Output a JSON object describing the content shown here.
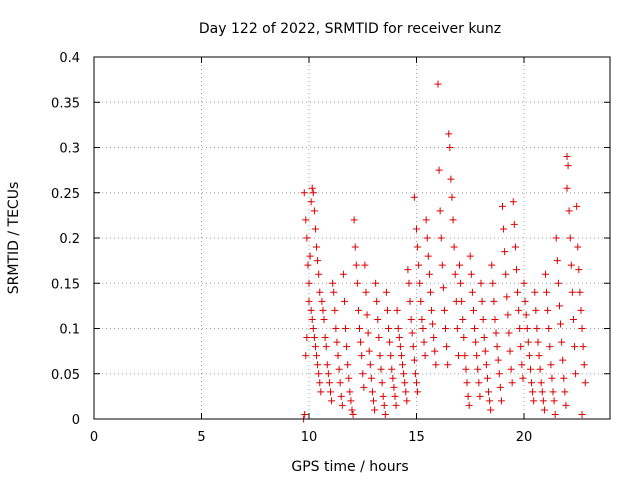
{
  "chart_data": {
    "type": "scatter",
    "title": "Day 122 of 2022, SRMTID for receiver kunz",
    "xlabel": "GPS time / hours",
    "ylabel": "SRMTID / TECUs",
    "xlim": [
      0,
      24
    ],
    "ylim": [
      0,
      0.4
    ],
    "xticks": [
      0,
      5,
      10,
      15,
      20
    ],
    "xtick_labels": [
      "0",
      "5",
      "10",
      "15",
      "20"
    ],
    "yticks": [
      0,
      0.05,
      0.1,
      0.15,
      0.2,
      0.25,
      0.3,
      0.35,
      0.4
    ],
    "ytick_labels": [
      "0",
      "0.05",
      "0.1",
      "0.15",
      "0.2",
      "0.25",
      "0.3",
      "0.35",
      "0.4"
    ],
    "grid": true,
    "marker": "+",
    "color": "#dd0000",
    "series": [
      {
        "name": "SRMTID",
        "points": [
          [
            9.75,
            0.0
          ],
          [
            9.8,
            0.005
          ],
          [
            9.78,
            0.25
          ],
          [
            9.85,
            0.22
          ],
          [
            9.9,
            0.2
          ],
          [
            9.95,
            0.17
          ],
          [
            10.0,
            0.15
          ],
          [
            10.0,
            0.13
          ],
          [
            9.9,
            0.09
          ],
          [
            9.85,
            0.07
          ],
          [
            10.05,
            0.18
          ],
          [
            10.1,
            0.24
          ],
          [
            10.15,
            0.255
          ],
          [
            10.2,
            0.25
          ],
          [
            10.25,
            0.23
          ],
          [
            10.3,
            0.21
          ],
          [
            10.35,
            0.19
          ],
          [
            10.4,
            0.175
          ],
          [
            10.45,
            0.16
          ],
          [
            10.5,
            0.14
          ],
          [
            10.1,
            0.12
          ],
          [
            10.15,
            0.11
          ],
          [
            10.2,
            0.1
          ],
          [
            10.25,
            0.09
          ],
          [
            10.3,
            0.08
          ],
          [
            10.35,
            0.07
          ],
          [
            10.4,
            0.06
          ],
          [
            10.45,
            0.05
          ],
          [
            10.5,
            0.04
          ],
          [
            10.55,
            0.03
          ],
          [
            10.6,
            0.13
          ],
          [
            10.65,
            0.12
          ],
          [
            10.7,
            0.11
          ],
          [
            10.75,
            0.09
          ],
          [
            10.8,
            0.08
          ],
          [
            10.85,
            0.06
          ],
          [
            10.9,
            0.05
          ],
          [
            10.95,
            0.04
          ],
          [
            11.0,
            0.03
          ],
          [
            11.05,
            0.02
          ],
          [
            11.1,
            0.15
          ],
          [
            11.15,
            0.14
          ],
          [
            11.2,
            0.12
          ],
          [
            11.25,
            0.1
          ],
          [
            11.3,
            0.085
          ],
          [
            11.35,
            0.07
          ],
          [
            11.4,
            0.055
          ],
          [
            11.45,
            0.04
          ],
          [
            11.5,
            0.025
          ],
          [
            11.55,
            0.015
          ],
          [
            11.6,
            0.16
          ],
          [
            11.65,
            0.13
          ],
          [
            11.7,
            0.1
          ],
          [
            11.75,
            0.08
          ],
          [
            11.8,
            0.06
          ],
          [
            11.85,
            0.045
          ],
          [
            11.9,
            0.03
          ],
          [
            11.95,
            0.02
          ],
          [
            12.0,
            0.01
          ],
          [
            12.05,
            0.005
          ],
          [
            12.1,
            0.22
          ],
          [
            12.15,
            0.19
          ],
          [
            12.2,
            0.17
          ],
          [
            12.25,
            0.15
          ],
          [
            12.3,
            0.12
          ],
          [
            12.35,
            0.1
          ],
          [
            12.4,
            0.085
          ],
          [
            12.45,
            0.07
          ],
          [
            12.5,
            0.05
          ],
          [
            12.55,
            0.035
          ],
          [
            12.6,
            0.17
          ],
          [
            12.65,
            0.14
          ],
          [
            12.7,
            0.115
          ],
          [
            12.75,
            0.095
          ],
          [
            12.8,
            0.075
          ],
          [
            12.85,
            0.06
          ],
          [
            12.9,
            0.045
          ],
          [
            12.95,
            0.03
          ],
          [
            13.0,
            0.02
          ],
          [
            13.05,
            0.01
          ],
          [
            13.1,
            0.15
          ],
          [
            13.15,
            0.13
          ],
          [
            13.2,
            0.11
          ],
          [
            13.25,
            0.09
          ],
          [
            13.3,
            0.07
          ],
          [
            13.35,
            0.055
          ],
          [
            13.4,
            0.04
          ],
          [
            13.45,
            0.025
          ],
          [
            13.5,
            0.015
          ],
          [
            13.55,
            0.005
          ],
          [
            13.6,
            0.14
          ],
          [
            13.65,
            0.12
          ],
          [
            13.7,
            0.1
          ],
          [
            13.75,
            0.085
          ],
          [
            13.8,
            0.07
          ],
          [
            13.85,
            0.055
          ],
          [
            13.9,
            0.045
          ],
          [
            13.95,
            0.035
          ],
          [
            14.0,
            0.025
          ],
          [
            14.05,
            0.015
          ],
          [
            14.1,
            0.12
          ],
          [
            14.15,
            0.1
          ],
          [
            14.2,
            0.09
          ],
          [
            14.25,
            0.08
          ],
          [
            14.3,
            0.07
          ],
          [
            14.35,
            0.06
          ],
          [
            14.4,
            0.05
          ],
          [
            14.45,
            0.04
          ],
          [
            14.5,
            0.03
          ],
          [
            14.55,
            0.02
          ],
          [
            14.6,
            0.165
          ],
          [
            14.65,
            0.15
          ],
          [
            14.7,
            0.13
          ],
          [
            14.75,
            0.11
          ],
          [
            14.8,
            0.095
          ],
          [
            14.85,
            0.08
          ],
          [
            14.9,
            0.065
          ],
          [
            14.95,
            0.05
          ],
          [
            15.0,
            0.04
          ],
          [
            15.05,
            0.03
          ],
          [
            14.9,
            0.245
          ],
          [
            15.0,
            0.21
          ],
          [
            15.05,
            0.19
          ],
          [
            15.1,
            0.17
          ],
          [
            15.15,
            0.15
          ],
          [
            15.2,
            0.13
          ],
          [
            15.25,
            0.11
          ],
          [
            15.3,
            0.1
          ],
          [
            15.35,
            0.085
          ],
          [
            15.4,
            0.07
          ],
          [
            15.45,
            0.22
          ],
          [
            15.5,
            0.2
          ],
          [
            15.55,
            0.18
          ],
          [
            15.6,
            0.16
          ],
          [
            15.65,
            0.14
          ],
          [
            15.7,
            0.12
          ],
          [
            15.75,
            0.105
          ],
          [
            15.8,
            0.09
          ],
          [
            15.85,
            0.075
          ],
          [
            15.9,
            0.06
          ],
          [
            16.0,
            0.37
          ],
          [
            16.05,
            0.275
          ],
          [
            16.1,
            0.23
          ],
          [
            16.15,
            0.2
          ],
          [
            16.2,
            0.17
          ],
          [
            16.25,
            0.145
          ],
          [
            16.3,
            0.12
          ],
          [
            16.35,
            0.1
          ],
          [
            16.4,
            0.08
          ],
          [
            16.45,
            0.06
          ],
          [
            16.5,
            0.315
          ],
          [
            16.55,
            0.3
          ],
          [
            16.6,
            0.265
          ],
          [
            16.65,
            0.245
          ],
          [
            16.7,
            0.22
          ],
          [
            16.75,
            0.19
          ],
          [
            16.8,
            0.16
          ],
          [
            16.85,
            0.13
          ],
          [
            16.9,
            0.1
          ],
          [
            16.95,
            0.07
          ],
          [
            17.0,
            0.17
          ],
          [
            17.05,
            0.15
          ],
          [
            17.1,
            0.13
          ],
          [
            17.15,
            0.11
          ],
          [
            17.2,
            0.09
          ],
          [
            17.25,
            0.07
          ],
          [
            17.3,
            0.055
          ],
          [
            17.35,
            0.04
          ],
          [
            17.4,
            0.025
          ],
          [
            17.45,
            0.015
          ],
          [
            17.5,
            0.18
          ],
          [
            17.55,
            0.16
          ],
          [
            17.6,
            0.14
          ],
          [
            17.65,
            0.12
          ],
          [
            17.7,
            0.1
          ],
          [
            17.75,
            0.085
          ],
          [
            17.8,
            0.07
          ],
          [
            17.85,
            0.055
          ],
          [
            17.9,
            0.04
          ],
          [
            17.95,
            0.025
          ],
          [
            18.0,
            0.15
          ],
          [
            18.05,
            0.13
          ],
          [
            18.1,
            0.11
          ],
          [
            18.15,
            0.09
          ],
          [
            18.2,
            0.075
          ],
          [
            18.25,
            0.06
          ],
          [
            18.3,
            0.045
          ],
          [
            18.35,
            0.03
          ],
          [
            18.4,
            0.02
          ],
          [
            18.45,
            0.01
          ],
          [
            18.5,
            0.17
          ],
          [
            18.55,
            0.15
          ],
          [
            18.6,
            0.13
          ],
          [
            18.65,
            0.11
          ],
          [
            18.7,
            0.095
          ],
          [
            18.75,
            0.08
          ],
          [
            18.8,
            0.065
          ],
          [
            18.85,
            0.05
          ],
          [
            18.9,
            0.035
          ],
          [
            18.95,
            0.02
          ],
          [
            19.0,
            0.235
          ],
          [
            19.05,
            0.21
          ],
          [
            19.1,
            0.185
          ],
          [
            19.15,
            0.16
          ],
          [
            19.2,
            0.135
          ],
          [
            19.25,
            0.115
          ],
          [
            19.3,
            0.095
          ],
          [
            19.35,
            0.075
          ],
          [
            19.4,
            0.055
          ],
          [
            19.45,
            0.04
          ],
          [
            19.5,
            0.24
          ],
          [
            19.55,
            0.215
          ],
          [
            19.6,
            0.19
          ],
          [
            19.65,
            0.165
          ],
          [
            19.7,
            0.14
          ],
          [
            19.75,
            0.12
          ],
          [
            19.8,
            0.1
          ],
          [
            19.85,
            0.08
          ],
          [
            19.9,
            0.06
          ],
          [
            19.95,
            0.045
          ],
          [
            20.0,
            0.15
          ],
          [
            20.05,
            0.13
          ],
          [
            20.1,
            0.115
          ],
          [
            20.15,
            0.1
          ],
          [
            20.2,
            0.085
          ],
          [
            20.25,
            0.07
          ],
          [
            20.3,
            0.055
          ],
          [
            20.35,
            0.04
          ],
          [
            20.4,
            0.03
          ],
          [
            20.45,
            0.02
          ],
          [
            20.5,
            0.14
          ],
          [
            20.55,
            0.12
          ],
          [
            20.6,
            0.1
          ],
          [
            20.65,
            0.085
          ],
          [
            20.7,
            0.07
          ],
          [
            20.75,
            0.055
          ],
          [
            20.8,
            0.04
          ],
          [
            20.85,
            0.03
          ],
          [
            20.9,
            0.02
          ],
          [
            20.95,
            0.01
          ],
          [
            21.0,
            0.16
          ],
          [
            21.05,
            0.14
          ],
          [
            21.1,
            0.12
          ],
          [
            21.15,
            0.1
          ],
          [
            21.2,
            0.08
          ],
          [
            21.25,
            0.06
          ],
          [
            21.3,
            0.045
          ],
          [
            21.35,
            0.03
          ],
          [
            21.4,
            0.02
          ],
          [
            21.45,
            0.005
          ],
          [
            21.5,
            0.2
          ],
          [
            21.55,
            0.175
          ],
          [
            21.6,
            0.15
          ],
          [
            21.65,
            0.125
          ],
          [
            21.7,
            0.105
          ],
          [
            21.75,
            0.085
          ],
          [
            21.8,
            0.065
          ],
          [
            21.85,
            0.045
          ],
          [
            21.9,
            0.03
          ],
          [
            21.95,
            0.015
          ],
          [
            22.0,
            0.29
          ],
          [
            22.05,
            0.28
          ],
          [
            22.0,
            0.255
          ],
          [
            22.1,
            0.23
          ],
          [
            22.15,
            0.2
          ],
          [
            22.2,
            0.17
          ],
          [
            22.25,
            0.14
          ],
          [
            22.3,
            0.11
          ],
          [
            22.35,
            0.08
          ],
          [
            22.4,
            0.05
          ],
          [
            22.45,
            0.235
          ],
          [
            22.5,
            0.19
          ],
          [
            22.55,
            0.165
          ],
          [
            22.6,
            0.14
          ],
          [
            22.65,
            0.12
          ],
          [
            22.7,
            0.1
          ],
          [
            22.75,
            0.08
          ],
          [
            22.8,
            0.06
          ],
          [
            22.85,
            0.04
          ],
          [
            22.7,
            0.005
          ]
        ]
      }
    ]
  }
}
